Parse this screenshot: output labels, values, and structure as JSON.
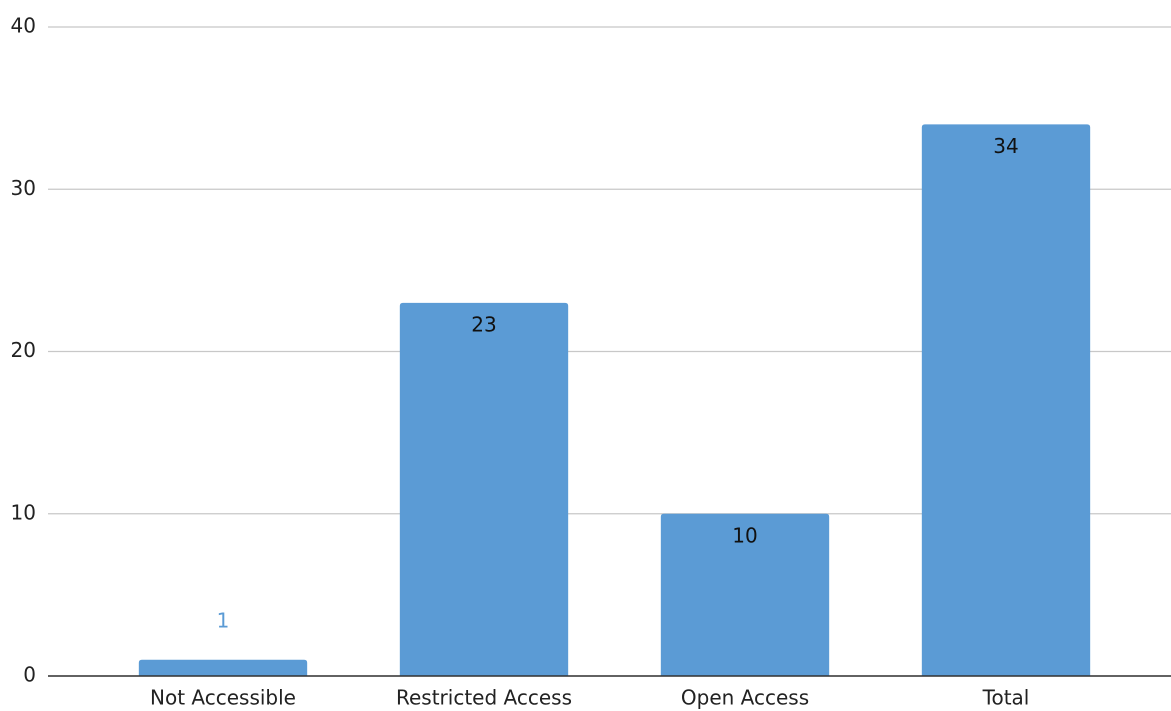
{
  "chart_data": {
    "type": "bar",
    "categories": [
      "Not Accessible",
      "Restricted Access",
      "Open Access",
      "Total"
    ],
    "values": [
      1,
      23,
      10,
      34
    ],
    "color": "#5b9bd5",
    "ylim": [
      0,
      40
    ],
    "yticks": [
      0,
      10,
      20,
      30,
      40
    ],
    "grid": true
  }
}
